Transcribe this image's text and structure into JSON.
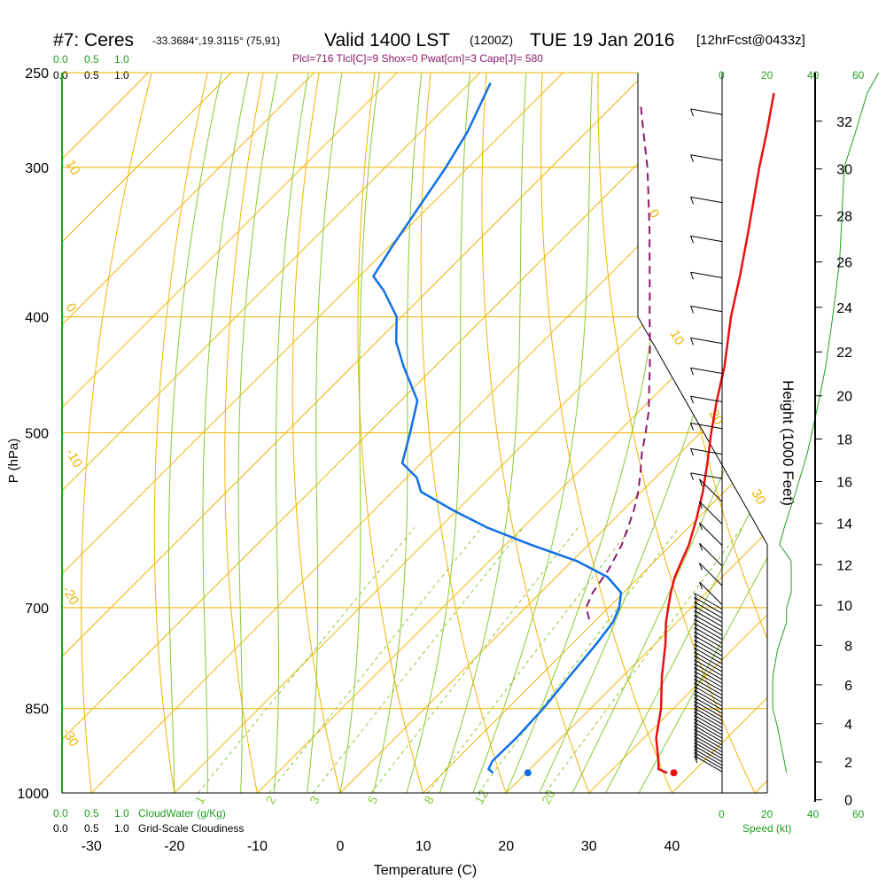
{
  "header": {
    "station": "#7: Ceres",
    "coords": "-33.3684°,19.3115° (75,91)",
    "valid": "Valid 1400 LST",
    "zulu": "(1200Z)",
    "date": "TUE 19 Jan 2016",
    "fcst": "[12hrFcst@0433z]",
    "indices": "Plcl=716 Tlcl[C]=9 Shox=0 Pwat[cm]=3 Cape[J]= 580"
  },
  "colors": {
    "isobar": "#f0b400",
    "isotherm": "#f0b400",
    "dry_adiabat": "#f0b400",
    "moist_adiabat": "#8cc832",
    "mixing_ratio": "#8cc832",
    "temperature": "#e81010",
    "dewpoint": "#1070e8",
    "parcel": "#8b1a6b",
    "green_text": "#20a020",
    "wind_profile": "#20a020"
  },
  "cloud_scale": {
    "top_green": [
      "0.0",
      "0.5",
      "1.0"
    ],
    "top_black": [
      "0.0",
      "0.5",
      "1.0"
    ],
    "bottom_green": [
      "0.0",
      "0.5",
      "1.0"
    ],
    "bottom_green_label": "CloudWater (g/Kg)",
    "bottom_black": [
      "0.0",
      "0.5",
      "1.0"
    ],
    "bottom_black_label": "Grid-Scale Cloudiness"
  },
  "wind_speed_scale": {
    "top_green": [
      "20",
      "40",
      "60"
    ],
    "top_black": [
      "0"
    ],
    "bottom_black": [
      "0",
      "20",
      "40"
    ],
    "bottom_green": [
      "60"
    ],
    "label": "Speed (kt)"
  },
  "mixing_ratio_labels": [
    "1",
    "2",
    "3",
    "5",
    "8",
    "12",
    "20"
  ],
  "dry_adiabat_labels": [
    "10",
    "0",
    "-10",
    "-20",
    "-30",
    "0",
    "10",
    "20",
    "30"
  ],
  "height_axis": {
    "label": "Height (1000 Feet)",
    "ticks": [
      "0",
      "2",
      "4",
      "6",
      "8",
      "10",
      "12",
      "14",
      "16",
      "18",
      "20",
      "22",
      "24",
      "26",
      "28",
      "30",
      "32"
    ]
  },
  "chart_data": {
    "type": "line",
    "title": "",
    "xlabel": "Temperature (C)",
    "ylabel": "P (hPa)",
    "x_ticks": [
      -30,
      -20,
      -10,
      0,
      10,
      20,
      30,
      40
    ],
    "y_ticks": [
      250,
      300,
      400,
      500,
      700,
      850,
      1000
    ],
    "xlim": [
      -34,
      40
    ],
    "ylim": [
      1000,
      250
    ],
    "y_scale": "log",
    "series": [
      {
        "name": "Temperature",
        "pressure": [
          962,
          955,
          940,
          900,
          850,
          800,
          750,
          720,
          700,
          680,
          660,
          640,
          620,
          590,
          560,
          530,
          500,
          470,
          440,
          400,
          370,
          340,
          300,
          280,
          260
        ],
        "temperature": [
          37,
          35.5,
          34.5,
          31.5,
          28.5,
          24.8,
          21.2,
          18.7,
          17.2,
          15.7,
          14.3,
          13.2,
          12.1,
          9.9,
          7.4,
          4.5,
          1.3,
          -1.9,
          -5.1,
          -10.3,
          -14.1,
          -18.4,
          -24.9,
          -28.3,
          -32.1
        ]
      },
      {
        "name": "Dewpoint",
        "pressure": [
          962,
          955,
          940,
          900,
          850,
          800,
          750,
          720,
          700,
          680,
          660,
          640,
          620,
          600,
          580,
          560,
          545,
          530,
          500,
          470,
          440,
          420,
          400,
          380,
          370,
          350,
          320,
          300,
          280,
          255
        ],
        "temperature": [
          16,
          15,
          14.5,
          14.6,
          14.3,
          13.6,
          12.9,
          12.3,
          11.3,
          9.7,
          6.2,
          0.6,
          -7,
          -14.3,
          -20.6,
          -26.6,
          -28.8,
          -32.3,
          -35,
          -38,
          -43.8,
          -47.6,
          -50.6,
          -55.4,
          -58.3,
          -59.6,
          -61.4,
          -62.7,
          -64.4,
          -67.5
        ]
      },
      {
        "name": "Parcel",
        "pressure": [
          716,
          700,
          680,
          650,
          620,
          600,
          580,
          560,
          540,
          520,
          500,
          480,
          460,
          440,
          420,
          400,
          380,
          360,
          340,
          320,
          300,
          280,
          265
        ],
        "temperature": [
          9.1,
          7.3,
          6.3,
          5.4,
          4,
          2.7,
          1.3,
          -0.4,
          -2.4,
          -4.6,
          -6.6,
          -8.8,
          -11.4,
          -14.1,
          -17,
          -20.1,
          -23.3,
          -26.7,
          -30.3,
          -34.2,
          -38.4,
          -43.2,
          -47
        ]
      }
    ],
    "surface_points": [
      {
        "name": "Surface temperature",
        "pressure": 962,
        "temperature": 37.8
      },
      {
        "name": "Surface dewpoint",
        "pressure": 962,
        "temperature": 20.2
      }
    ],
    "wind_speed_profile_kt": {
      "pressure": [
        962,
        920,
        880,
        850,
        800,
        760,
        720,
        700,
        680,
        660,
        640,
        620,
        600,
        560,
        520,
        480,
        440,
        400,
        360,
        330,
        300,
        280,
        260,
        250
      ],
      "speed": [
        28,
        26,
        24,
        22,
        22,
        24,
        28,
        28,
        30,
        30,
        30,
        25,
        27,
        32,
        37,
        41,
        45,
        48,
        51,
        52,
        53,
        58,
        63,
        68
      ]
    },
    "grid": true,
    "legend": "none"
  }
}
